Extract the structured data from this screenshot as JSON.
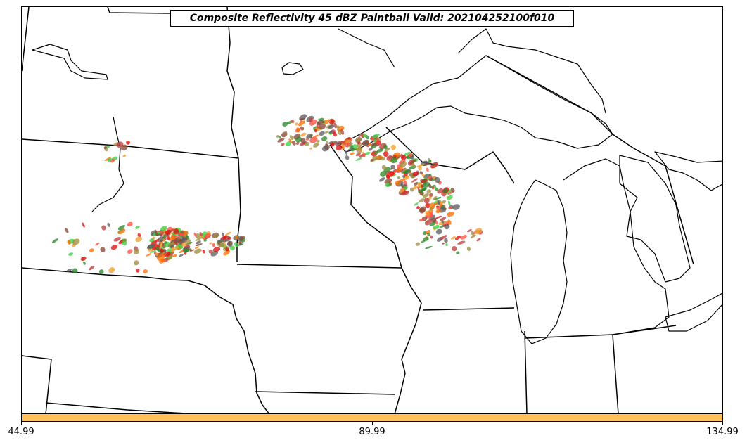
{
  "title": "Composite Reflectivity 45 dBZ Paintball Valid: 202104252100f010",
  "colorbar": {
    "color": "#ffc060",
    "ticks": [
      "44.99",
      "89.99",
      "134.99"
    ]
  },
  "paintball_colors": [
    "#e01010",
    "#ff5040",
    "#40d040",
    "#2e8b2e",
    "#ff7000",
    "#f0a030",
    "#606060",
    "#8b4a3a",
    "#a09040",
    "#c04040"
  ]
}
